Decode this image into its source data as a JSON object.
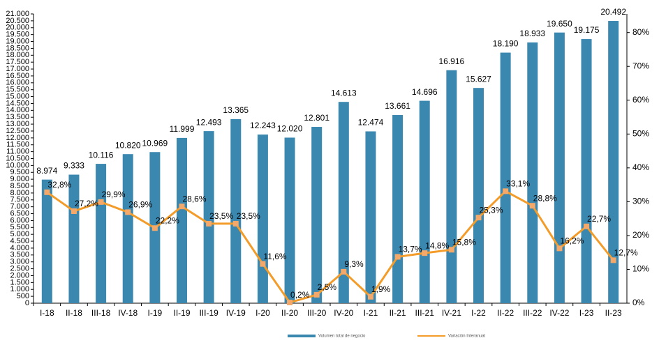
{
  "chart_data": {
    "type": "bar",
    "categories": [
      "I-18",
      "II-18",
      "III-18",
      "IV-18",
      "I-19",
      "II-19",
      "III-19",
      "IV-19",
      "I-20",
      "II-20",
      "III-20",
      "IV-20",
      "I-21",
      "II-21",
      "III-21",
      "IV-21",
      "I-22",
      "II-22",
      "III-22",
      "IV-22",
      "I-23",
      "II-23"
    ],
    "series": [
      {
        "name": "Volumen total de negocio",
        "color": "#3a87b0",
        "axis": "y",
        "values": [
          8974,
          9333,
          10116,
          10820,
          10969,
          11999,
          12493,
          13365,
          12243,
          12020,
          12801,
          14613,
          12474,
          13661,
          14696,
          16916,
          15627,
          18190,
          18933,
          19650,
          19175,
          20492
        ],
        "value_labels": [
          "8.974",
          "9.333",
          "10.116",
          "10.820",
          "10.969",
          "11.999",
          "12.493",
          "13.365",
          "12.243",
          "12.020",
          "12.801",
          "14.613",
          "12.474",
          "13.661",
          "14.696",
          "16.916",
          "15.627",
          "18.190",
          "18.933",
          "19.650",
          "19.175",
          "20.492"
        ]
      },
      {
        "name": "Variación Interanual",
        "color": "#f39c2a",
        "marker_color": "#f4a96a",
        "type": "line",
        "axis": "y2",
        "values": [
          32.8,
          27.2,
          29.9,
          26.9,
          22.2,
          28.6,
          23.5,
          23.5,
          11.6,
          0.2,
          2.5,
          9.3,
          1.9,
          13.7,
          14.8,
          15.8,
          25.3,
          33.1,
          28.8,
          16.2,
          22.7,
          12.7
        ],
        "value_labels": [
          "32,8%",
          "27,2%",
          "29,9%",
          "26,9%",
          "22,2%",
          "28,6%",
          "23,5%",
          "23,5%",
          "11,6%",
          "0,2%",
          "2,5%",
          "9,3%",
          "1,9%",
          "13,7%",
          "14,8%",
          "15,8%",
          "25,3%",
          "33,1%",
          "28,8%",
          "16,2%",
          "22,7%",
          "12,7%"
        ]
      }
    ],
    "ylim": [
      0,
      21000
    ],
    "yticks": [
      0,
      500,
      {
        "value": 1000,
        "label": "1.000"
      },
      {
        "value": 1500,
        "label": "1.500"
      },
      {
        "value": 2000,
        "label": "2.000"
      },
      {
        "value": 2500,
        "label": "2.500"
      },
      {
        "value": 3000,
        "label": "3.000"
      },
      {
        "value": 3500,
        "label": "3.500"
      },
      {
        "value": 4000,
        "label": "4.000"
      },
      {
        "value": 4500,
        "label": "4.500"
      },
      {
        "value": 5000,
        "label": "5.000"
      },
      {
        "value": 5500,
        "label": "5.500"
      },
      {
        "value": 6000,
        "label": "6.000"
      },
      {
        "value": 6500,
        "label": "6.500"
      },
      {
        "value": 7000,
        "label": "7.000"
      },
      {
        "value": 7500,
        "label": "7.500"
      },
      {
        "value": 8000,
        "label": "8.000"
      },
      {
        "value": 8500,
        "label": "8.500"
      },
      {
        "value": 9000,
        "label": "9.000"
      },
      {
        "value": 9500,
        "label": "9.500"
      },
      {
        "value": 10000,
        "label": "10.000"
      },
      {
        "value": 10500,
        "label": "10.500"
      },
      {
        "value": 11000,
        "label": "11.000"
      },
      {
        "value": 11500,
        "label": "11.500"
      },
      {
        "value": 12000,
        "label": "12.000"
      },
      {
        "value": 12500,
        "label": "12.500"
      },
      {
        "value": 13000,
        "label": "13.000"
      },
      {
        "value": 13500,
        "label": "13.500"
      },
      {
        "value": 14000,
        "label": "14.000"
      },
      {
        "value": 14500,
        "label": "14.500"
      },
      {
        "value": 15000,
        "label": "15.000"
      },
      {
        "value": 15500,
        "label": "15.500"
      },
      {
        "value": 16000,
        "label": "16.000"
      },
      {
        "value": 16500,
        "label": "16.500"
      },
      {
        "value": 17000,
        "label": "17.000"
      },
      {
        "value": 17500,
        "label": "17.500"
      },
      {
        "value": 18000,
        "label": "18.000"
      },
      {
        "value": 18500,
        "label": "18.500"
      },
      {
        "value": 19000,
        "label": "19.000"
      },
      {
        "value": 19500,
        "label": "19.500"
      },
      {
        "value": 20000,
        "label": "20.000"
      },
      {
        "value": 20500,
        "label": "20.500"
      },
      {
        "value": 21000,
        "label": "21.000"
      }
    ],
    "y2lim": [
      0,
      85.5
    ],
    "y2ticks": [
      {
        "value": 0,
        "label": "0%"
      },
      {
        "value": 10,
        "label": "10%"
      },
      {
        "value": 20,
        "label": "20%"
      },
      {
        "value": 30,
        "label": "30%"
      },
      {
        "value": 40,
        "label": "40%"
      },
      {
        "value": 50,
        "label": "50%"
      },
      {
        "value": 60,
        "label": "60%"
      },
      {
        "value": 70,
        "label": "70%"
      },
      {
        "value": 80,
        "label": "80%"
      }
    ],
    "legend": "bottom"
  }
}
